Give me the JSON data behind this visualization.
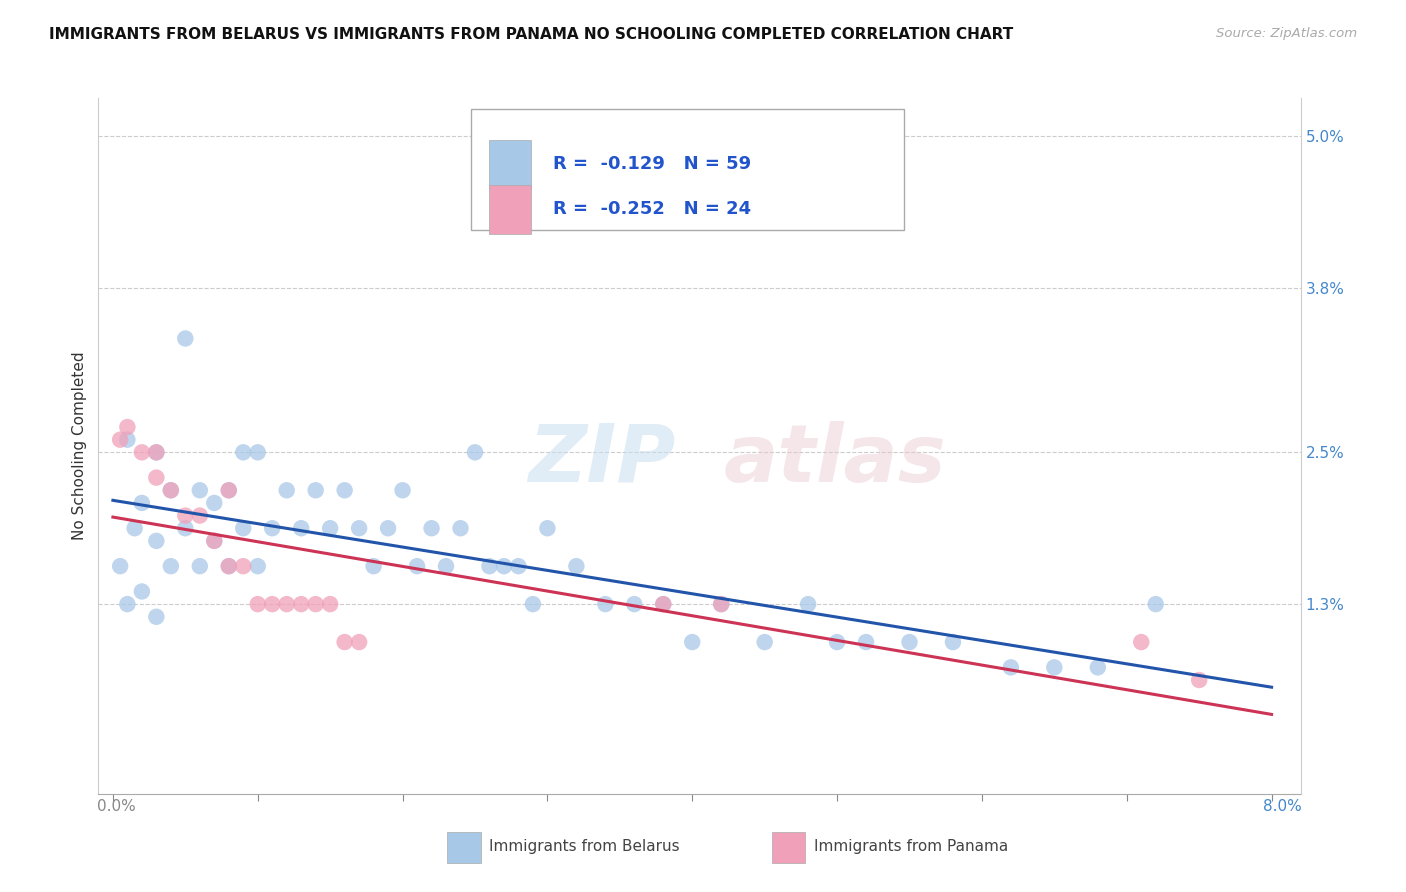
{
  "title": "IMMIGRANTS FROM BELARUS VS IMMIGRANTS FROM PANAMA NO SCHOOLING COMPLETED CORRELATION CHART",
  "source": "Source: ZipAtlas.com",
  "ylabel": "No Schooling Completed",
  "ytick_vals": [
    0.013,
    0.025,
    0.038,
    0.05
  ],
  "ytick_labels": [
    "1.3%",
    "2.5%",
    "3.8%",
    "5.0%"
  ],
  "xtick_vals": [
    0.0,
    0.01,
    0.02,
    0.03,
    0.04,
    0.05,
    0.06,
    0.07,
    0.08
  ],
  "xlim": [
    -0.001,
    0.082
  ],
  "ylim": [
    -0.002,
    0.053
  ],
  "legend_bottom_label1": "Immigrants from Belarus",
  "legend_bottom_label2": "Immigrants from Panama",
  "color_belarus": "#a8c8e8",
  "color_panama": "#f0a0b8",
  "line_color_belarus": "#2255aa",
  "line_color_panama": "#cc3355",
  "color_text_blue": "#2255cc",
  "background_color": "#ffffff",
  "belarus_x": [
    0.0005,
    0.001,
    0.001,
    0.0015,
    0.002,
    0.002,
    0.003,
    0.003,
    0.003,
    0.004,
    0.004,
    0.005,
    0.005,
    0.006,
    0.006,
    0.007,
    0.007,
    0.008,
    0.008,
    0.009,
    0.009,
    0.01,
    0.01,
    0.011,
    0.012,
    0.013,
    0.014,
    0.015,
    0.016,
    0.017,
    0.018,
    0.019,
    0.02,
    0.021,
    0.022,
    0.023,
    0.024,
    0.025,
    0.026,
    0.027,
    0.028,
    0.029,
    0.03,
    0.032,
    0.034,
    0.036,
    0.038,
    0.04,
    0.042,
    0.045,
    0.048,
    0.05,
    0.052,
    0.055,
    0.058,
    0.062,
    0.065,
    0.068,
    0.072
  ],
  "belarus_y": [
    0.016,
    0.026,
    0.013,
    0.019,
    0.021,
    0.014,
    0.025,
    0.018,
    0.012,
    0.022,
    0.016,
    0.034,
    0.019,
    0.022,
    0.016,
    0.021,
    0.018,
    0.022,
    0.016,
    0.025,
    0.019,
    0.025,
    0.016,
    0.019,
    0.022,
    0.019,
    0.022,
    0.019,
    0.022,
    0.019,
    0.016,
    0.019,
    0.022,
    0.016,
    0.019,
    0.016,
    0.019,
    0.025,
    0.016,
    0.016,
    0.016,
    0.013,
    0.019,
    0.016,
    0.013,
    0.013,
    0.013,
    0.01,
    0.013,
    0.01,
    0.013,
    0.01,
    0.01,
    0.01,
    0.01,
    0.008,
    0.008,
    0.008,
    0.013
  ],
  "panama_x": [
    0.0005,
    0.001,
    0.002,
    0.003,
    0.003,
    0.004,
    0.005,
    0.006,
    0.007,
    0.008,
    0.008,
    0.009,
    0.01,
    0.011,
    0.012,
    0.013,
    0.014,
    0.015,
    0.016,
    0.017,
    0.038,
    0.042,
    0.071,
    0.075
  ],
  "panama_y": [
    0.026,
    0.027,
    0.025,
    0.025,
    0.023,
    0.022,
    0.02,
    0.02,
    0.018,
    0.022,
    0.016,
    0.016,
    0.013,
    0.013,
    0.013,
    0.013,
    0.013,
    0.013,
    0.01,
    0.01,
    0.013,
    0.013,
    0.01,
    0.007
  ]
}
